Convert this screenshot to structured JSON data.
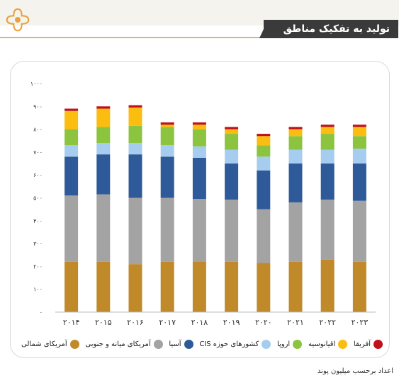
{
  "header": {
    "title": "تولید به تفکیک مناطق",
    "logo_icon": "quatrefoil-logo-icon",
    "accent_color": "#e8a23a"
  },
  "footer": {
    "unit_note": "اعداد برحسب میلیون پوند"
  },
  "chart_data": {
    "type": "bar",
    "stacked": true,
    "categories": [
      "۲۰۱۴",
      "۲۰۱۵",
      "۲۰۱۶",
      "۲۰۱۷",
      "۲۰۱۸",
      "۲۰۱۹",
      "۲۰۲۰",
      "۲۰۲۱",
      "۲۰۲۲",
      "۲۰۲۳"
    ],
    "ylim": [
      0,
      1000
    ],
    "yticks": [
      0,
      100,
      200,
      300,
      400,
      500,
      600,
      700,
      800,
      900,
      1000
    ],
    "ytick_labels": [
      "۰",
      "۱۰۰",
      "۲۰۰",
      "۳۰۰",
      "۴۰۰",
      "۵۰۰",
      "۶۰۰",
      "۷۰۰",
      "۸۰۰",
      "۹۰۰",
      "۱۰۰۰"
    ],
    "grid": false,
    "legend_position": "bottom",
    "series": [
      {
        "name": "آمریکای شمالی",
        "color": "#c08a2a",
        "values": [
          220,
          220,
          210,
          220,
          222,
          220,
          215,
          220,
          230,
          220
        ]
      },
      {
        "name": "آمریکای میانه و جنوبی",
        "color": "#a3a3a3",
        "values": [
          290,
          295,
          290,
          280,
          273,
          272,
          235,
          260,
          262,
          267
        ]
      },
      {
        "name": "آسیا",
        "color": "#2f5a99",
        "values": [
          170,
          175,
          190,
          180,
          180,
          158,
          170,
          170,
          158,
          163
        ]
      },
      {
        "name": "کشورهای حوزه CIS",
        "color": "#a6cdf0",
        "values": [
          50,
          50,
          50,
          50,
          50,
          60,
          60,
          60,
          60,
          65
        ]
      },
      {
        "name": "اروپا",
        "color": "#8cc43f",
        "values": [
          70,
          70,
          75,
          80,
          75,
          70,
          50,
          60,
          70,
          55
        ]
      },
      {
        "name": "اقیانوسیه",
        "color": "#fbbd0f",
        "values": [
          80,
          80,
          80,
          10,
          20,
          20,
          40,
          30,
          30,
          40
        ]
      },
      {
        "name": "آفریقا",
        "color": "#c0101a",
        "values": [
          10,
          10,
          10,
          10,
          10,
          10,
          10,
          10,
          10,
          10
        ]
      }
    ]
  }
}
